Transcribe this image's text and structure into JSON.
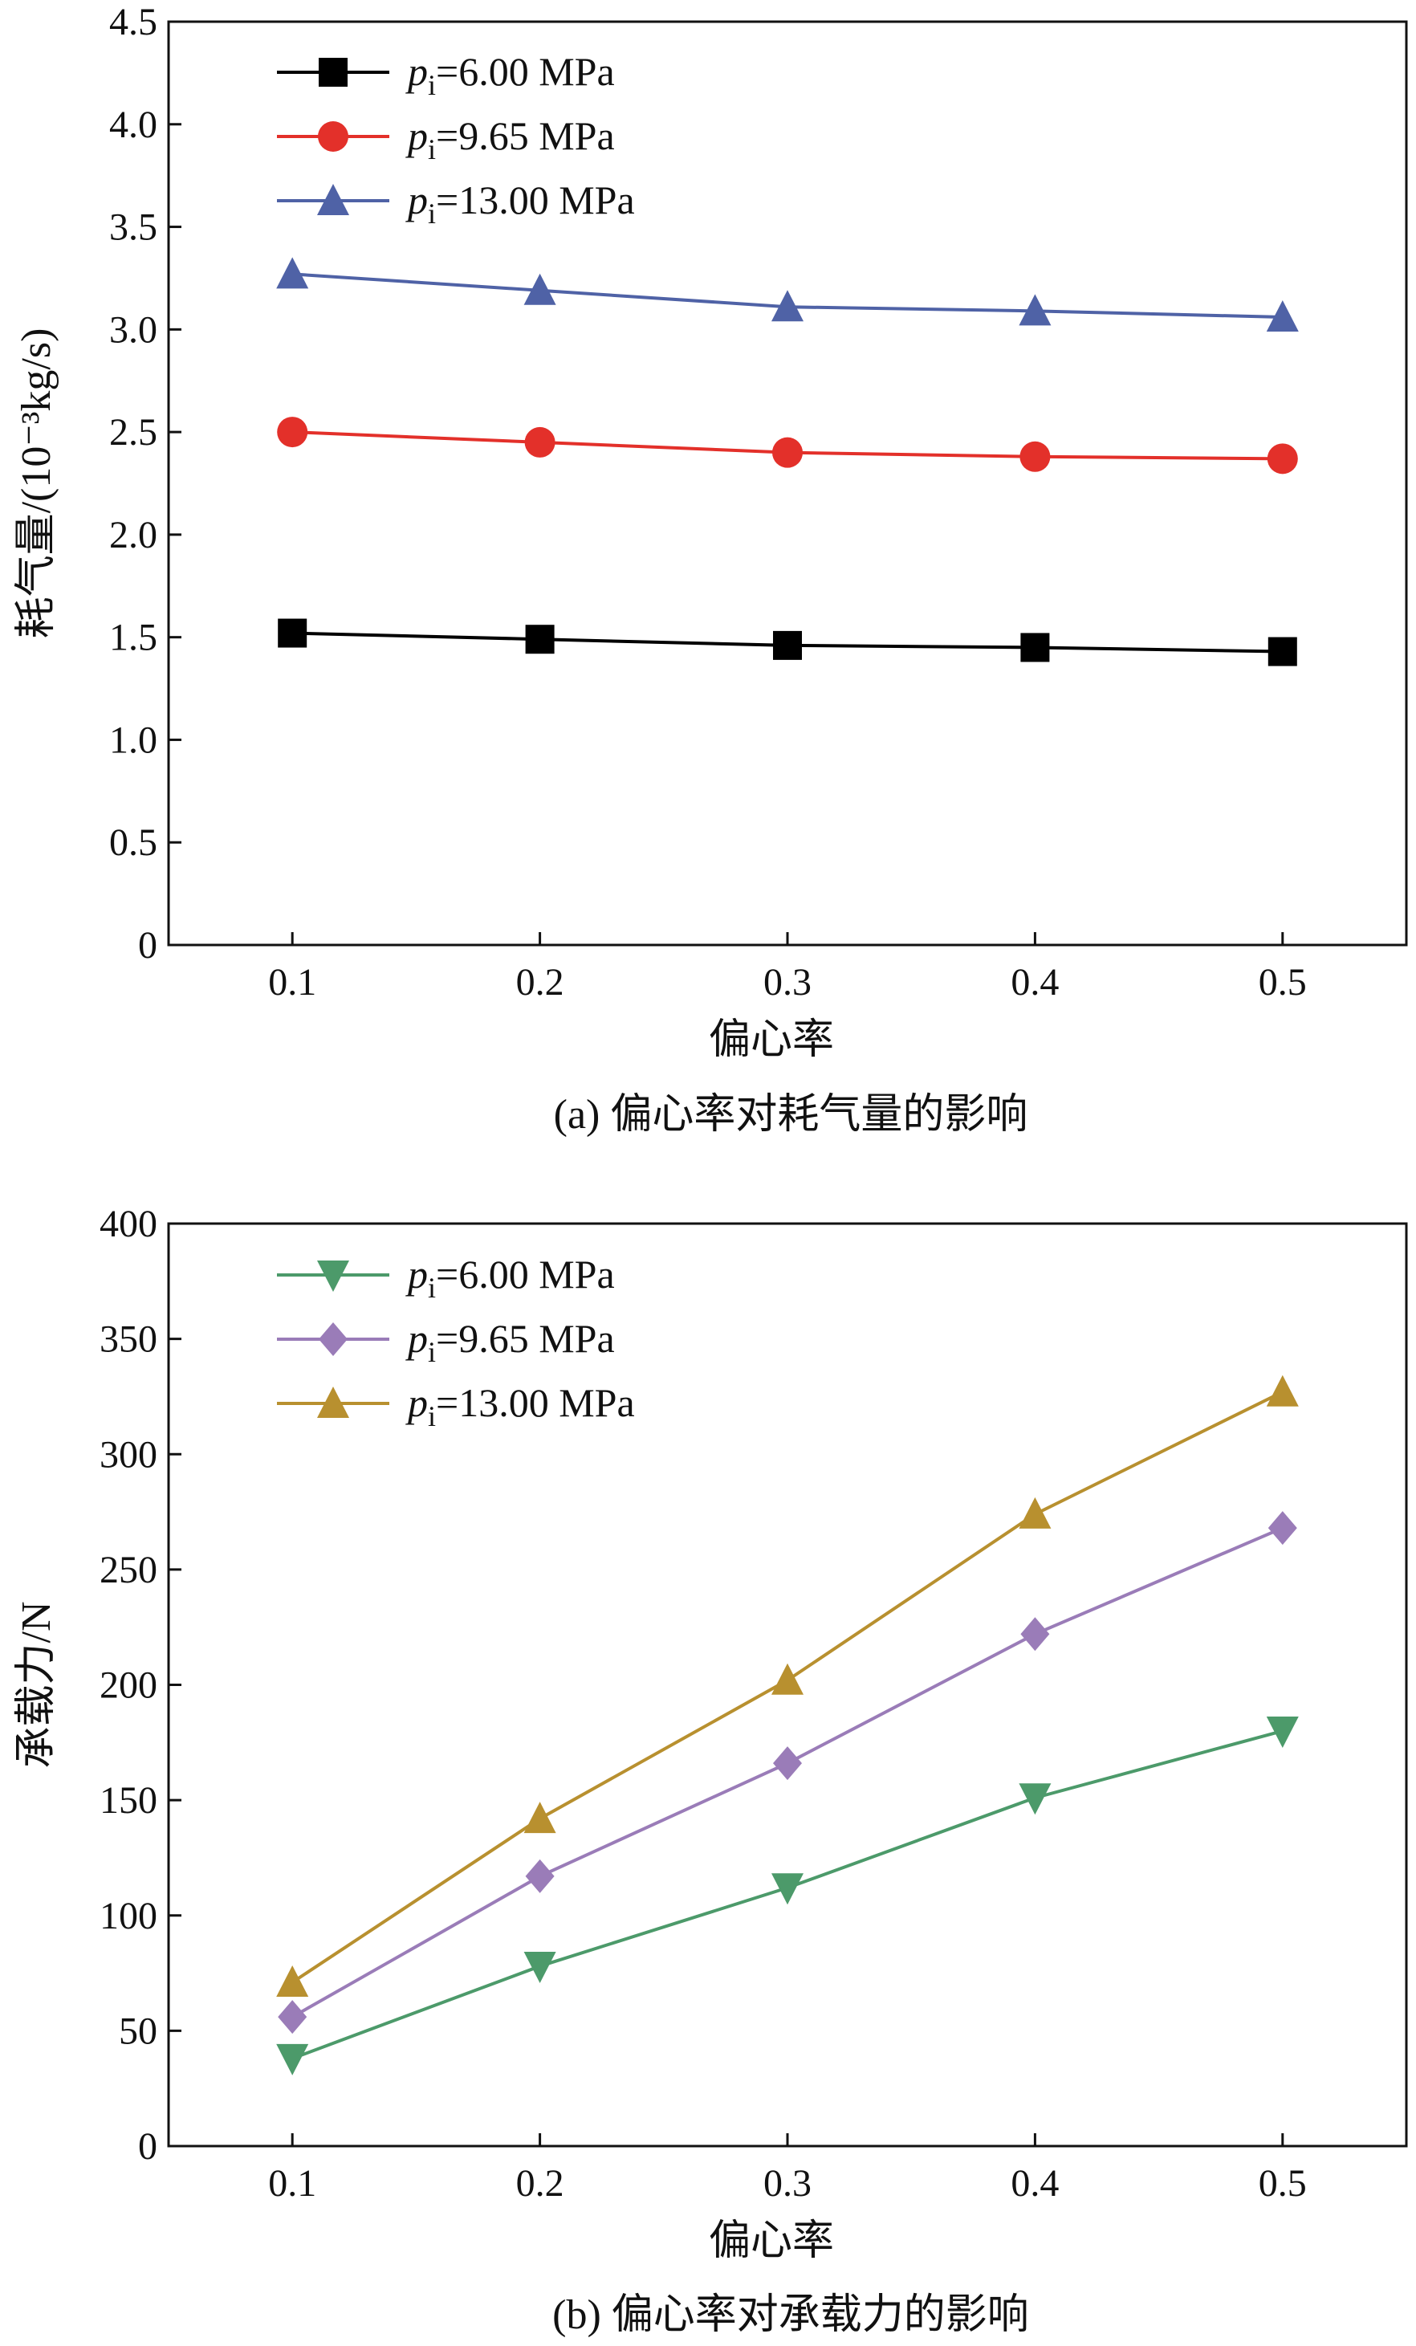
{
  "chart_data": [
    {
      "type": "line",
      "id": "a",
      "caption": "(a) 偏心率对耗气量的影响",
      "xlabel": "偏心率",
      "ylabel": "耗气量/(10⁻³kg/s)",
      "categories": [
        0.1,
        0.2,
        0.3,
        0.4,
        0.5
      ],
      "x_tick_labels": [
        "0.1",
        "0.2",
        "0.3",
        "0.4",
        "0.5"
      ],
      "xlim": [
        0.05,
        0.55
      ],
      "ylim": [
        0,
        4.5
      ],
      "y_ticks": [
        0,
        0.5,
        1.0,
        1.5,
        2.0,
        2.5,
        3.0,
        3.5,
        4.0,
        4.5
      ],
      "y_tick_labels": [
        "0",
        "0.5",
        "1.0",
        "1.5",
        "2.0",
        "2.5",
        "3.0",
        "3.5",
        "4.0",
        "4.5"
      ],
      "legend_position": "top-left",
      "grid": false,
      "series": [
        {
          "name_main": "p",
          "name_sub": "i",
          "name_rest": "=6.00 MPa",
          "color": "#000000",
          "marker": "square",
          "values": [
            1.52,
            1.49,
            1.46,
            1.45,
            1.43
          ]
        },
        {
          "name_main": "p",
          "name_sub": "i",
          "name_rest": "=9.65 MPa",
          "color": "#e3302a",
          "marker": "circle",
          "values": [
            2.5,
            2.45,
            2.4,
            2.38,
            2.37
          ]
        },
        {
          "name_main": "p",
          "name_sub": "i",
          "name_rest": "=13.00 MPa",
          "color": "#4f62a6",
          "marker": "triangle-up",
          "values": [
            3.27,
            3.19,
            3.11,
            3.09,
            3.06
          ]
        }
      ]
    },
    {
      "type": "line",
      "id": "b",
      "caption": "(b) 偏心率对承载力的影响",
      "xlabel": "偏心率",
      "ylabel": "承载力/N",
      "categories": [
        0.1,
        0.2,
        0.3,
        0.4,
        0.5
      ],
      "x_tick_labels": [
        "0.1",
        "0.2",
        "0.3",
        "0.4",
        "0.5"
      ],
      "xlim": [
        0.05,
        0.55
      ],
      "ylim": [
        0,
        400
      ],
      "y_ticks": [
        0,
        50,
        100,
        150,
        200,
        250,
        300,
        350,
        400
      ],
      "y_tick_labels": [
        "0",
        "50",
        "100",
        "150",
        "200",
        "250",
        "300",
        "350",
        "400"
      ],
      "legend_position": "top-left",
      "grid": false,
      "series": [
        {
          "name_main": "p",
          "name_sub": "i",
          "name_rest": "=6.00 MPa",
          "color": "#4c9a6a",
          "marker": "triangle-down",
          "values": [
            38,
            78,
            112,
            151,
            180
          ]
        },
        {
          "name_main": "p",
          "name_sub": "i",
          "name_rest": "=9.65 MPa",
          "color": "#9a7cb8",
          "marker": "diamond",
          "values": [
            56,
            117,
            166,
            222,
            268
          ]
        },
        {
          "name_main": "p",
          "name_sub": "i",
          "name_rest": "=13.00 MPa",
          "color": "#b8902f",
          "marker": "triangle-up",
          "values": [
            71,
            142,
            202,
            274,
            327
          ]
        }
      ]
    }
  ]
}
